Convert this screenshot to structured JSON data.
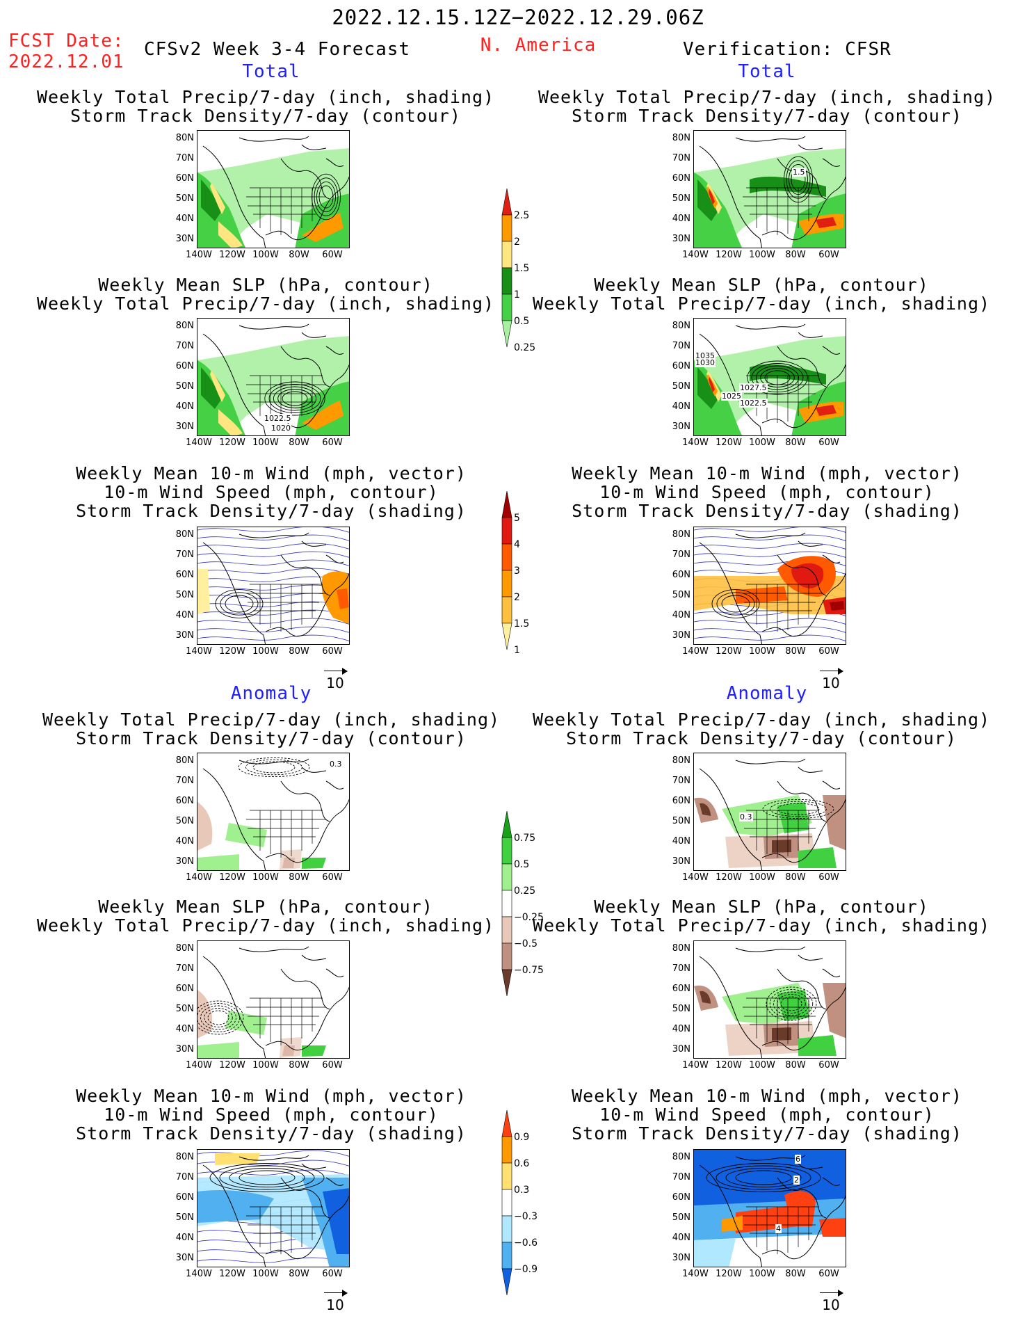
{
  "header": {
    "date_range": "2022.12.15.12Z−2022.12.29.06Z",
    "fcst_label": "FCST Date:",
    "fcst_date": "2022.12.01",
    "model": "CFSv2 Week 3-4 Forecast",
    "region": "N. America",
    "verification": "Verification: CFSR"
  },
  "sections": {
    "total": "Total",
    "anomaly": "Anomaly"
  },
  "panels": {
    "p1": [
      "Weekly Total Precip/7-day (inch, shading)",
      "Storm Track Density/7-day (contour)"
    ],
    "p2": [
      "Weekly Mean SLP (hPa, contour)",
      "Weekly Total Precip/7-day (inch, shading)"
    ],
    "p3": [
      "Weekly Mean 10-m Wind (mph, vector)",
      "10-m Wind Speed (mph, contour)",
      "Storm Track Density/7-day (shading)"
    ]
  },
  "axes": {
    "lat": [
      "80N",
      "70N",
      "60N",
      "50N",
      "40N",
      "30N"
    ],
    "lon": [
      "140W",
      "120W",
      "100W",
      "80W",
      "60W"
    ]
  },
  "vector_ref": "10",
  "contour_labels": {
    "fcst_slp_total": [
      "1022.5",
      "1020"
    ],
    "cfsr_slp_total": [
      "1035",
      "1030",
      "1027.5",
      "1025",
      "1022.5"
    ],
    "cfsr_storm_total": [
      "1.5"
    ],
    "fcst_storm_anom": [
      "0.3"
    ],
    "cfsr_storm_anom": [
      "0.3"
    ],
    "cfsr_wind_anom": [
      "6",
      "2",
      "4"
    ]
  },
  "colorbars": {
    "precip_total": {
      "labels": [
        "2.5",
        "2",
        "1.5",
        "1",
        "0.5",
        "0.25"
      ],
      "colors": [
        "#e02010",
        "#ff9900",
        "#ffe680",
        "#189018",
        "#46d046",
        "#a8f0a0"
      ]
    },
    "storm_total": {
      "labels": [
        "5",
        "4",
        "3",
        "2",
        "1.5",
        "1"
      ],
      "colors": [
        "#a00000",
        "#e01a10",
        "#ff5a00",
        "#ff9900",
        "#ffc040",
        "#fff0a0"
      ]
    },
    "precip_anom": {
      "labels": [
        "0.75",
        "0.5",
        "0.25",
        "−0.25",
        "−0.5",
        "−0.75"
      ],
      "colors": [
        "#18a018",
        "#40d040",
        "#a0f090",
        "#ffffff",
        "#e8c8b8",
        "#c09080",
        "#6a3a2a"
      ]
    },
    "storm_anom": {
      "labels": [
        "0.9",
        "0.6",
        "0.3",
        "−0.3",
        "−0.6",
        "−0.9"
      ],
      "colors": [
        "#ff4010",
        "#ff9900",
        "#ffe070",
        "#ffffff",
        "#b0e8ff",
        "#50b0f0",
        "#1060e0"
      ]
    }
  }
}
